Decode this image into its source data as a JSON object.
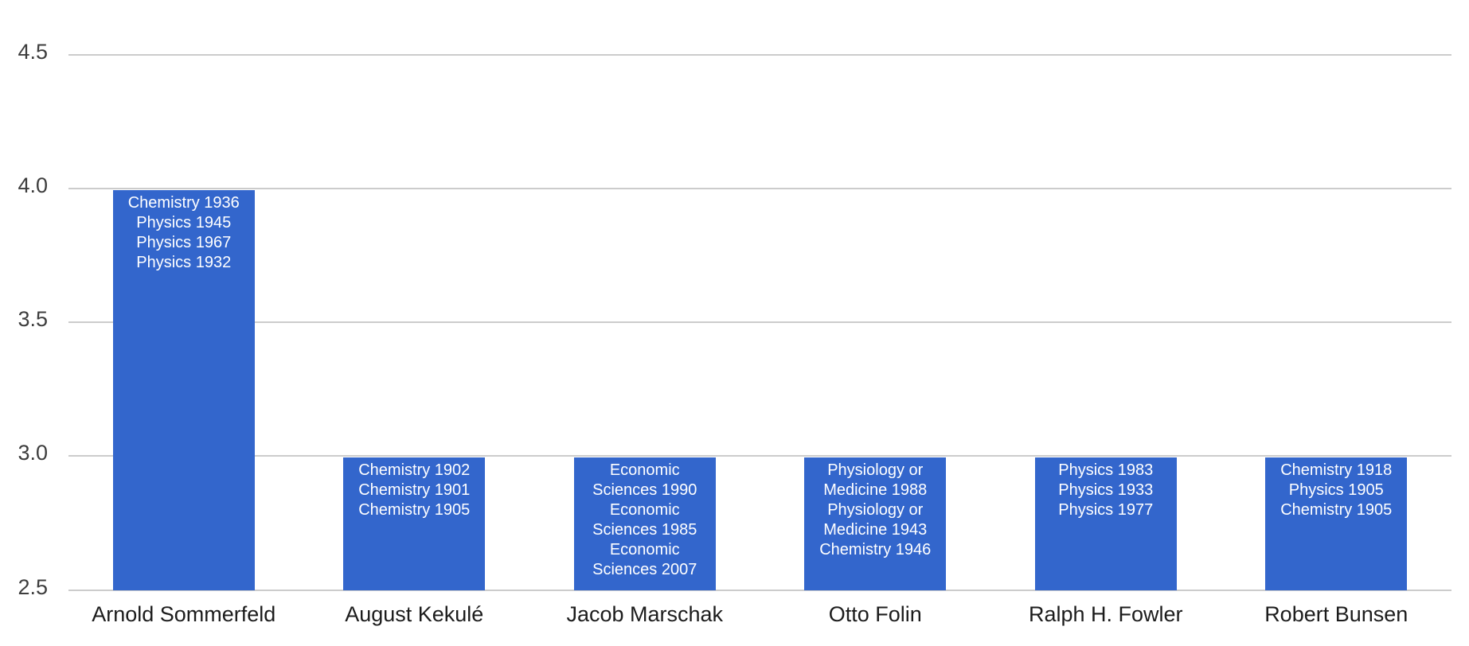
{
  "chart_data": {
    "type": "bar",
    "title": "",
    "xlabel": "",
    "ylabel": "",
    "categories": [
      "Arnold Sommerfeld",
      "August Kekulé",
      "Jacob Marschak",
      "Otto Folin",
      "Ralph H. Fowler",
      "Robert Bunsen"
    ],
    "values": [
      4.0,
      3.0,
      3.0,
      3.0,
      3.0,
      3.0
    ],
    "bar_annotations": [
      [
        "Chemistry 1936",
        "Physics 1945",
        "Physics 1967",
        "Physics 1932"
      ],
      [
        "Chemistry 1902",
        "Chemistry 1901",
        "Chemistry 1905"
      ],
      [
        "Economic Sciences 1990",
        "Economic Sciences 1985",
        "Economic Sciences 2007"
      ],
      [
        "Physiology or Medicine 1988",
        "Physiology or Medicine 1943",
        "Chemistry 1946"
      ],
      [
        "Physics 1983",
        "Physics 1933",
        "Physics 1977"
      ],
      [
        "Chemistry 1918",
        "Physics 1905",
        "Chemistry 1905"
      ]
    ],
    "ylim": [
      2.5,
      4.5
    ],
    "yticks": [
      2.5,
      3.0,
      3.5,
      4.0,
      4.5
    ],
    "ytick_labels": [
      "2.5",
      "3.0",
      "3.5",
      "4.0",
      "4.5"
    ],
    "grid": true,
    "legend": "none",
    "colors": {
      "bar": "#3366cc",
      "annotation_text": "#ffffff",
      "gridline": "#cccccc",
      "axis_tick_text": "#3d3d3d",
      "category_text": "#1c1c1c",
      "background": "#ffffff"
    }
  }
}
